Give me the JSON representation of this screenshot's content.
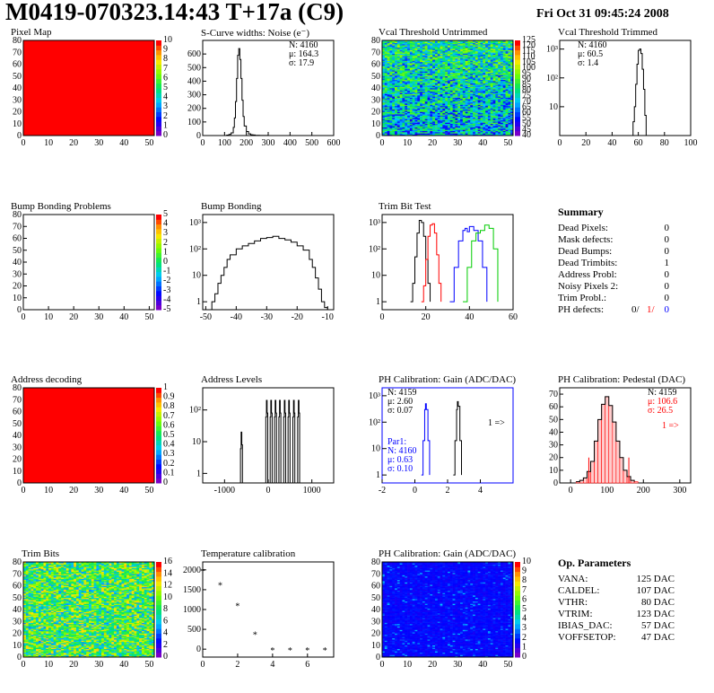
{
  "header": {
    "title": "M0419-070323.14:43 T+17a (C9)",
    "date": "Fri Oct 31 09:45:24 2008"
  },
  "colors": {
    "red": "#ff0000",
    "blue": "#0000ff",
    "green": "#00cc00",
    "fill": "#ff0000"
  },
  "panels": {
    "pixel_map": {
      "title": "Pixel Map",
      "xticks": [
        "0",
        "10",
        "20",
        "30",
        "40",
        "50"
      ],
      "yticks": [
        "0",
        "10",
        "20",
        "30",
        "40",
        "50",
        "60",
        "70",
        "80"
      ],
      "zticks": [
        "0",
        "1",
        "2",
        "3",
        "4",
        "5",
        "6",
        "7",
        "8",
        "9",
        "10"
      ]
    },
    "noise": {
      "title": "S-Curve widths: Noise (e⁻)",
      "xticks": [
        "0",
        "100",
        "200",
        "300",
        "400",
        "500",
        "600"
      ],
      "yticks": [
        "0",
        "100",
        "200",
        "300",
        "400",
        "500",
        "600"
      ],
      "stats": [
        "N: 4160",
        "μ: 164.3",
        "σ: 17.9"
      ]
    },
    "vcal_untrimmed": {
      "title": "Vcal Threshold Untrimmed",
      "xticks": [
        "0",
        "10",
        "20",
        "30",
        "40",
        "50"
      ],
      "yticks": [
        "0",
        "10",
        "20",
        "30",
        "40",
        "50",
        "60",
        "70",
        "80"
      ],
      "zticks": [
        "40",
        "45",
        "50",
        "55",
        "60",
        "65",
        "70",
        "75",
        "80",
        "85",
        "90",
        "95",
        "100",
        "105",
        "110",
        "115",
        "120",
        "125"
      ]
    },
    "vcal_trimmed": {
      "title": "Vcal Threshold Trimmed",
      "xticks": [
        "0",
        "20",
        "40",
        "60",
        "80",
        "100"
      ],
      "yticks": [
        "10",
        "10²",
        "10³"
      ],
      "stats": [
        "N: 4160",
        "μ: 60.5",
        "σ: 1.4"
      ]
    },
    "bump_problems": {
      "title": "Bump Bonding Problems",
      "xticks": [
        "0",
        "10",
        "20",
        "30",
        "40",
        "50"
      ],
      "yticks": [
        "0",
        "10",
        "20",
        "30",
        "40",
        "50",
        "60",
        "70",
        "80"
      ],
      "zticks": [
        "-5",
        "-4",
        "-3",
        "-2",
        "-1",
        "0",
        "1",
        "2",
        "3",
        "4",
        "5"
      ]
    },
    "bump_bonding": {
      "title": "Bump Bonding",
      "xticks": [
        "-50",
        "-40",
        "-30",
        "-20",
        "-10"
      ],
      "yticks": [
        "1",
        "10",
        "10²",
        "10³"
      ]
    },
    "trim_bit_test": {
      "title": "Trim Bit Test",
      "xticks": [
        "0",
        "20",
        "40",
        "60"
      ],
      "yticks": [
        "1",
        "10",
        "10²",
        "10³"
      ]
    },
    "address_decoding": {
      "title": "Address decoding",
      "xticks": [
        "0",
        "10",
        "20",
        "30",
        "40",
        "50"
      ],
      "yticks": [
        "0",
        "10",
        "20",
        "30",
        "40",
        "50",
        "60",
        "70",
        "80"
      ],
      "zticks": [
        "0",
        "0.1",
        "0.2",
        "0.3",
        "0.4",
        "0.5",
        "0.6",
        "0.7",
        "0.8",
        "0.9",
        "1"
      ]
    },
    "address_levels": {
      "title": "Address Levels",
      "xticks": [
        "-1000",
        "0",
        "1000"
      ],
      "yticks": [
        "1",
        "10",
        "10²"
      ]
    },
    "ph_gain": {
      "title": "PH Calibration: Gain (ADC/DAC)",
      "xticks": [
        "-2",
        "0",
        "2",
        "4"
      ],
      "yticks": [
        "1",
        "10",
        "10²",
        "10³"
      ],
      "stats": [
        "N: 4159",
        "μ: 2.60",
        "σ: 0.07"
      ],
      "stats2": [
        "Par1:",
        "N: 4160",
        "μ: 0.63",
        "σ: 0.10"
      ],
      "arrow": "1 =>"
    },
    "ph_pedestal": {
      "title": "PH Calibration: Pedestal (DAC)",
      "xticks": [
        "0",
        "100",
        "200",
        "300"
      ],
      "yticks": [
        "0",
        "10",
        "20",
        "30",
        "40",
        "50",
        "60",
        "70"
      ],
      "stats": [
        "N: 4159",
        "μ: 106.6",
        "σ: 26.5"
      ],
      "arrow": "1 =>"
    },
    "trim_bits": {
      "title": "Trim Bits",
      "xticks": [
        "0",
        "10",
        "20",
        "30",
        "40",
        "50"
      ],
      "yticks": [
        "0",
        "10",
        "20",
        "30",
        "40",
        "50",
        "60",
        "70",
        "80"
      ],
      "zticks": [
        "0",
        "2",
        "4",
        "6",
        "8",
        "10",
        "12",
        "14",
        "16"
      ]
    },
    "temperature": {
      "title": "Temperature calibration",
      "xticks": [
        "0",
        "2",
        "4",
        "6"
      ],
      "yticks": [
        "0",
        "500",
        "1000",
        "1500",
        "2000"
      ]
    },
    "ph_gain_map": {
      "title": "PH Calibration: Gain (ADC/DAC)",
      "xticks": [
        "0",
        "10",
        "20",
        "30",
        "40",
        "50"
      ],
      "yticks": [
        "0",
        "10",
        "20",
        "30",
        "40",
        "50",
        "60",
        "70",
        "80"
      ],
      "zticks": [
        "0",
        "1",
        "2",
        "3",
        "4",
        "5",
        "6",
        "7",
        "8",
        "9",
        "10"
      ]
    }
  },
  "summary": {
    "title": "Summary",
    "rows": [
      {
        "label": "Dead Pixels:",
        "value": "0"
      },
      {
        "label": "Mask defects:",
        "value": "0"
      },
      {
        "label": "Dead Bumps:",
        "value": "0"
      },
      {
        "label": "Dead Trimbits:",
        "value": "1"
      },
      {
        "label": "Address Probl:",
        "value": "0"
      },
      {
        "label": "Noisy Pixels 2:",
        "value": "0"
      },
      {
        "label": "Trim Probl.:",
        "value": "0"
      }
    ],
    "ph_defects_label": "PH defects:",
    "ph_defects": [
      "0/",
      "1/",
      "0"
    ]
  },
  "op_params": {
    "title": "Op. Parameters",
    "rows": [
      {
        "label": "VANA:",
        "value": "125 DAC"
      },
      {
        "label": "CALDEL:",
        "value": "107 DAC"
      },
      {
        "label": "VTHR:",
        "value": "80 DAC"
      },
      {
        "label": "VTRIM:",
        "value": "123 DAC"
      },
      {
        "label": "IBIAS_DAC:",
        "value": "57 DAC"
      },
      {
        "label": "VOFFSETOP:",
        "value": "47 DAC"
      }
    ]
  },
  "chart_data": [
    {
      "type": "heatmap",
      "title": "Pixel Map",
      "xlim": [
        0,
        52
      ],
      "ylim": [
        0,
        80
      ],
      "zlim": [
        0,
        10
      ],
      "uniform_value": 10
    },
    {
      "type": "line",
      "title": "S-Curve widths: Noise (e⁻)",
      "xlim": [
        0,
        600
      ],
      "ylim": [
        0,
        700
      ],
      "x": [
        100,
        110,
        120,
        130,
        140,
        145,
        150,
        155,
        160,
        165,
        170,
        175,
        180,
        185,
        190,
        200,
        210,
        220,
        230,
        240,
        250,
        260,
        280,
        300
      ],
      "y": [
        0,
        3,
        8,
        20,
        60,
        130,
        250,
        420,
        590,
        640,
        560,
        420,
        260,
        140,
        70,
        30,
        12,
        6,
        4,
        2,
        2,
        1,
        1,
        0
      ]
    },
    {
      "type": "heatmap",
      "title": "Vcal Threshold Untrimmed",
      "xlim": [
        0,
        52
      ],
      "ylim": [
        0,
        80
      ],
      "zlim": [
        40,
        125
      ],
      "mean": 75
    },
    {
      "type": "line",
      "title": "Vcal Threshold Trimmed",
      "xlim": [
        0,
        100
      ],
      "ylim": [
        1,
        2000
      ],
      "log_y": true,
      "x": [
        55,
        56,
        57,
        58,
        59,
        60,
        61,
        62,
        63,
        64,
        65,
        66
      ],
      "y": [
        1,
        3,
        10,
        60,
        300,
        900,
        1000,
        700,
        200,
        40,
        5,
        1
      ]
    },
    {
      "type": "heatmap",
      "title": "Bump Bonding Problems",
      "xlim": [
        0,
        52
      ],
      "ylim": [
        0,
        80
      ],
      "zlim": [
        -5,
        5
      ],
      "uniform_value": null
    },
    {
      "type": "line",
      "title": "Bump Bonding",
      "xlim": [
        -51,
        -8
      ],
      "ylim": [
        0.5,
        2000
      ],
      "log_y": true,
      "x": [
        -50,
        -48,
        -47,
        -46,
        -45,
        -44,
        -43,
        -42,
        -40,
        -38,
        -36,
        -34,
        -32,
        -30,
        -28,
        -26,
        -24,
        -22,
        -20,
        -18,
        -16,
        -15,
        -14,
        -13,
        -12,
        -11,
        -10
      ],
      "y": [
        0.5,
        1,
        2,
        5,
        10,
        20,
        40,
        60,
        100,
        130,
        160,
        200,
        250,
        270,
        300,
        250,
        220,
        180,
        130,
        90,
        40,
        20,
        8,
        3,
        1,
        0.6,
        0.5
      ]
    },
    {
      "type": "line",
      "title": "Trim Bit Test",
      "xlim": [
        0,
        60
      ],
      "ylim": [
        0.5,
        2000
      ],
      "log_y": true,
      "series": [
        {
          "color": "black",
          "x": [
            13,
            14,
            15,
            16,
            17,
            18,
            19,
            20,
            21,
            22
          ],
          "y": [
            1,
            5,
            50,
            400,
            1200,
            1000,
            300,
            40,
            5,
            1
          ]
        },
        {
          "color": "red",
          "x": [
            18,
            19,
            20,
            21,
            22,
            23,
            24,
            25,
            26,
            27
          ],
          "y": [
            1,
            4,
            40,
            300,
            800,
            900,
            400,
            60,
            5,
            1
          ]
        },
        {
          "color": "blue",
          "x": [
            31,
            33,
            35,
            37,
            38,
            39,
            40,
            42,
            44,
            46,
            48
          ],
          "y": [
            1,
            20,
            200,
            500,
            600,
            450,
            700,
            500,
            200,
            20,
            1
          ]
        },
        {
          "color": "green",
          "x": [
            37,
            39,
            41,
            43,
            45,
            47,
            49,
            51,
            53
          ],
          "y": [
            1,
            20,
            200,
            400,
            500,
            800,
            600,
            100,
            1
          ]
        }
      ]
    },
    {
      "type": "heatmap",
      "title": "Address decoding",
      "xlim": [
        0,
        52
      ],
      "ylim": [
        0,
        80
      ],
      "zlim": [
        0,
        1
      ],
      "uniform_value": 1
    },
    {
      "type": "line",
      "title": "Address Levels",
      "xlim": [
        -1500,
        1500
      ],
      "ylim": [
        0.5,
        500
      ],
      "log_y": true,
      "peaks": [
        -620,
        -40,
        60,
        160,
        260,
        370,
        470,
        580,
        690
      ],
      "heights": [
        20,
        200,
        200,
        200,
        200,
        200,
        200,
        200,
        200
      ]
    },
    {
      "type": "line",
      "title": "PH Calibration: Gain (ADC/DAC)",
      "xlim": [
        -2,
        6
      ],
      "ylim": [
        0.5,
        2000
      ],
      "log_y": true,
      "series": [
        {
          "color": "black",
          "x": [
            2.35,
            2.45,
            2.55,
            2.6,
            2.65,
            2.75,
            2.85
          ],
          "y": [
            1,
            20,
            300,
            600,
            400,
            20,
            1
          ]
        },
        {
          "color": "blue",
          "x": [
            0.4,
            0.5,
            0.6,
            0.65,
            0.7,
            0.8,
            0.9
          ],
          "y": [
            1,
            20,
            300,
            500,
            300,
            20,
            1
          ]
        }
      ]
    },
    {
      "type": "bar",
      "title": "PH Calibration: Pedestal (DAC)",
      "xlim": [
        -30,
        330
      ],
      "ylim": [
        0,
        75
      ],
      "x": [
        20,
        30,
        40,
        50,
        60,
        70,
        80,
        90,
        100,
        110,
        120,
        130,
        140,
        150,
        160,
        170,
        180
      ],
      "y": [
        1,
        2,
        4,
        9,
        17,
        33,
        50,
        62,
        68,
        61,
        48,
        33,
        20,
        10,
        5,
        2,
        1
      ]
    },
    {
      "type": "heatmap",
      "title": "Trim Bits",
      "xlim": [
        0,
        52
      ],
      "ylim": [
        0,
        80
      ],
      "zlim": [
        0,
        16
      ],
      "mean": 9
    },
    {
      "type": "scatter",
      "title": "Temperature calibration",
      "xlim": [
        0,
        7.5
      ],
      "ylim": [
        -200,
        2200
      ],
      "x": [
        0,
        1,
        2,
        3,
        4,
        5,
        6,
        7
      ],
      "y": [
        2000,
        1650,
        1130,
        400,
        0,
        0,
        0,
        0
      ]
    },
    {
      "type": "heatmap",
      "title": "PH Calibration: Gain (ADC/DAC)",
      "xlim": [
        0,
        52
      ],
      "ylim": [
        0,
        80
      ],
      "zlim": [
        0,
        10
      ],
      "mean": 1.5
    }
  ]
}
